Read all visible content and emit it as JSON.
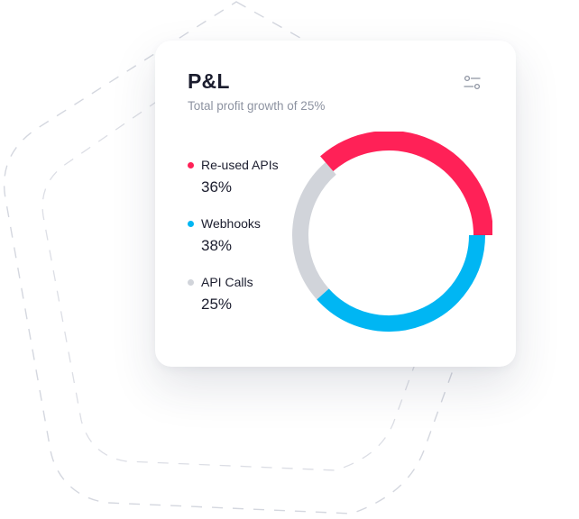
{
  "card": {
    "title": "P&L",
    "subtitle": "Total profit growth of 25%",
    "filter_icon": "sliders-icon"
  },
  "colors": {
    "reused_apis": "#ff2157",
    "webhooks": "#00b6f3",
    "api_calls": "#d1d4da",
    "title_text": "#1b1d2e",
    "subtitle_text": "#8d93a1"
  },
  "legend": [
    {
      "label": "Re-used APIs",
      "value": "36%"
    },
    {
      "label": "Webhooks",
      "value": "38%"
    },
    {
      "label": "API Calls",
      "value": "25%"
    }
  ],
  "chart_data": {
    "type": "pie",
    "variant": "donut",
    "categories": [
      "Re-used APIs",
      "Webhooks",
      "API Calls"
    ],
    "values": [
      36,
      38,
      25
    ],
    "colors": [
      "#ff2157",
      "#00b6f3",
      "#d1d4da"
    ]
  }
}
